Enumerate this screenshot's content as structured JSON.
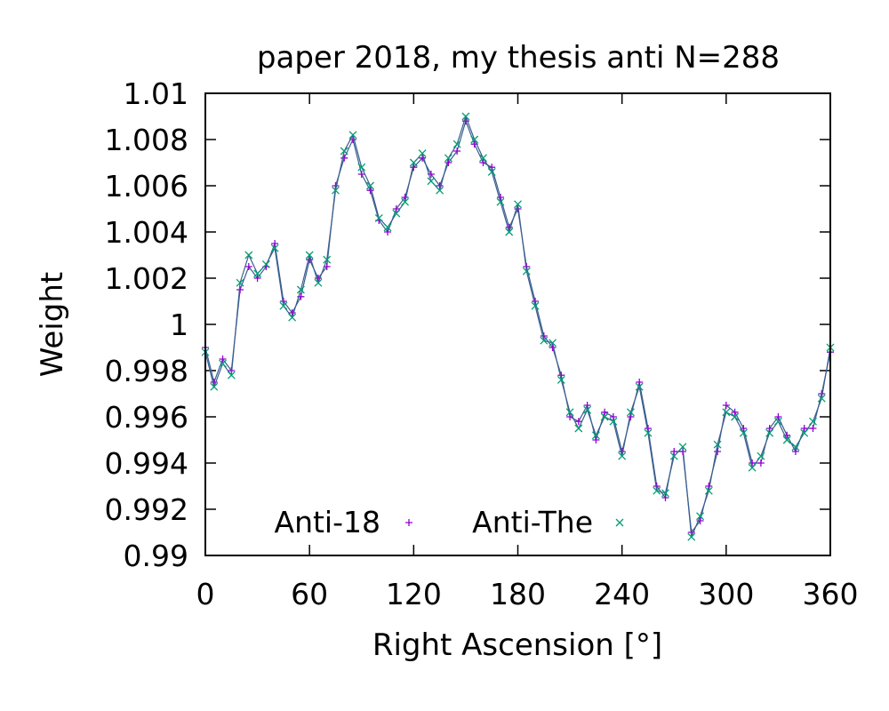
{
  "chart_data": {
    "type": "line",
    "title": "paper 2018, my thesis anti N=288",
    "xlabel": "Right Ascension [°]",
    "ylabel": "Weight",
    "xlim": [
      0,
      360
    ],
    "ylim": [
      0.99,
      1.01
    ],
    "xticks": [
      "0",
      "60",
      "120",
      "180",
      "240",
      "300",
      "360"
    ],
    "yticks": [
      "0.99",
      "0.992",
      "0.994",
      "0.996",
      "0.998",
      "1",
      "1.002",
      "1.004",
      "1.006",
      "1.008",
      "1.01"
    ],
    "legend": "bottom-left (inside, two entries in a row)",
    "grid": false,
    "series": [
      {
        "name": "Anti-18",
        "color": "#9400d3",
        "marker": "plus",
        "x": [
          0,
          5,
          10,
          15,
          20,
          25,
          30,
          35,
          40,
          45,
          50,
          55,
          60,
          65,
          70,
          75,
          80,
          85,
          90,
          95,
          100,
          105,
          110,
          115,
          120,
          125,
          130,
          135,
          140,
          145,
          150,
          155,
          160,
          165,
          170,
          175,
          180,
          185,
          190,
          195,
          200,
          205,
          210,
          215,
          220,
          225,
          230,
          235,
          240,
          245,
          250,
          255,
          260,
          265,
          270,
          275,
          280,
          285,
          290,
          295,
          300,
          305,
          310,
          315,
          320,
          325,
          330,
          335,
          340,
          345,
          350,
          355,
          360
        ],
        "values": [
          0.999,
          0.9975,
          0.9985,
          0.998,
          1.0015,
          1.0025,
          1.002,
          1.0025,
          1.0035,
          1.001,
          1.0005,
          1.0012,
          1.0028,
          1.002,
          1.0025,
          1.006,
          1.0072,
          1.008,
          1.0065,
          1.0058,
          1.0045,
          1.004,
          1.005,
          1.0055,
          1.0068,
          1.0072,
          1.0065,
          1.006,
          1.007,
          1.0075,
          1.0088,
          1.0078,
          1.007,
          1.0068,
          1.0055,
          1.0042,
          1.005,
          1.0025,
          1.001,
          0.9995,
          0.999,
          0.9978,
          0.996,
          0.9958,
          0.9965,
          0.995,
          0.9962,
          0.996,
          0.9945,
          0.996,
          0.9975,
          0.9955,
          0.993,
          0.9925,
          0.9945,
          0.9945,
          0.991,
          0.9915,
          0.993,
          0.9945,
          0.9965,
          0.9962,
          0.9955,
          0.994,
          0.994,
          0.9955,
          0.996,
          0.9952,
          0.9945,
          0.9955,
          0.9955,
          0.997,
          0.9988
        ]
      },
      {
        "name": "Anti-The",
        "color": "#009e73",
        "marker": "cross",
        "x": [
          0,
          5,
          10,
          15,
          20,
          25,
          30,
          35,
          40,
          45,
          50,
          55,
          60,
          65,
          70,
          75,
          80,
          85,
          90,
          95,
          100,
          105,
          110,
          115,
          120,
          125,
          130,
          135,
          140,
          145,
          150,
          155,
          160,
          165,
          170,
          175,
          180,
          185,
          190,
          195,
          200,
          205,
          210,
          215,
          220,
          225,
          230,
          235,
          240,
          245,
          250,
          255,
          260,
          265,
          270,
          275,
          280,
          285,
          290,
          295,
          300,
          305,
          310,
          315,
          320,
          325,
          330,
          335,
          340,
          345,
          350,
          355,
          360
        ],
        "values": [
          0.9988,
          0.9973,
          0.9983,
          0.9978,
          1.0018,
          1.003,
          1.0022,
          1.0026,
          1.0033,
          1.0008,
          1.0003,
          1.0015,
          1.003,
          1.0018,
          1.0028,
          1.0058,
          1.0075,
          1.0082,
          1.0068,
          1.006,
          1.0046,
          1.0042,
          1.0048,
          1.0053,
          1.007,
          1.0074,
          1.0062,
          1.0058,
          1.0072,
          1.0078,
          1.009,
          1.008,
          1.0072,
          1.0066,
          1.0053,
          1.004,
          1.0052,
          1.0023,
          1.0008,
          0.9993,
          0.9992,
          0.9976,
          0.9962,
          0.9955,
          0.9963,
          0.9952,
          0.996,
          0.9958,
          0.9943,
          0.9962,
          0.9973,
          0.9953,
          0.9928,
          0.9927,
          0.9943,
          0.9947,
          0.9908,
          0.9917,
          0.9928,
          0.9948,
          0.9962,
          0.996,
          0.9953,
          0.9938,
          0.9943,
          0.9953,
          0.9958,
          0.995,
          0.9947,
          0.9953,
          0.9958,
          0.9968,
          0.999
        ]
      }
    ]
  }
}
